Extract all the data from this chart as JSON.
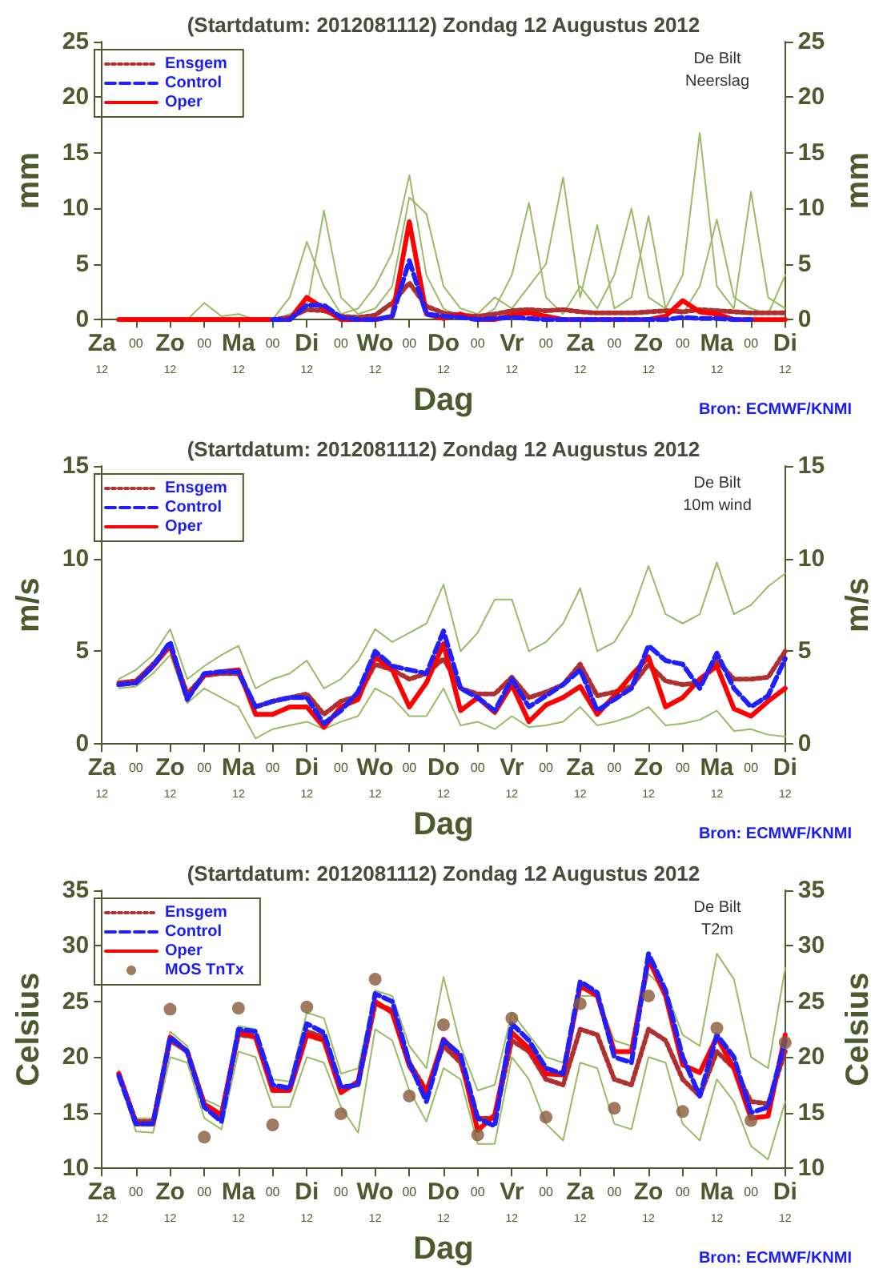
{
  "chart_data": [
    {
      "type": "line",
      "title": "(Startdatum: 2012081112) Zondag 12 Augustus 2012",
      "xlabel": "Dag",
      "ylabel": "mm",
      "y2label": "mm",
      "annotations": [
        "De Bilt",
        "Neerslag",
        "Bron: ECMWF/KNMI"
      ],
      "legend": "top left",
      "marker": "none",
      "categories": [
        "Za\n12",
        null,
        "00",
        null,
        "Zo\n12",
        null,
        "00",
        null,
        "Ma\n12",
        null,
        "00",
        null,
        "Di\n12",
        null,
        "00",
        null,
        "Wo\n12",
        null,
        "00",
        null,
        "Do\n12",
        null,
        "00",
        null,
        "Vr\n12",
        null,
        "00",
        null,
        "Za\n12",
        null,
        "00",
        null,
        "Zo\n12",
        null,
        "00",
        null,
        "Ma\n12",
        null,
        "00",
        null,
        "Di\n12"
      ],
      "ylim": [
        0,
        25
      ],
      "yticks": [
        0,
        5,
        10,
        15,
        20,
        25
      ],
      "y2lim": [
        0,
        25
      ],
      "y2ticks": [
        0,
        5,
        10,
        15,
        20,
        25
      ],
      "series": [
        {
          "color": "#99bb66",
          "line_style": "solid",
          "values": [
            null,
            null,
            null,
            null,
            0,
            0,
            0,
            0,
            0,
            0,
            0,
            2,
            7,
            3,
            0.5,
            1,
            3,
            6,
            13,
            4,
            1,
            0.2,
            0,
            1,
            4,
            10.5,
            2,
            0.5,
            3,
            1,
            4,
            10,
            2,
            1,
            4,
            16.8,
            3,
            1,
            11.5,
            2,
            1
          ]
        },
        {
          "color": "#99bb66",
          "line_style": "solid",
          "values": [
            null,
            null,
            null,
            null,
            0,
            0,
            1.5,
            0.3,
            0.5,
            0,
            0,
            0.5,
            1,
            9.8,
            2,
            0.5,
            1,
            3,
            11,
            9.5,
            3,
            1,
            0.5,
            2,
            1,
            3,
            5,
            12.8,
            2,
            8.5,
            1,
            2,
            9.3,
            1,
            0.5,
            3,
            9,
            2,
            1,
            0.5,
            4
          ]
        },
        {
          "name": "Ensgem",
          "color": "#b03030",
          "line_style": "dotted",
          "values": [
            null,
            0,
            0,
            0,
            0,
            0,
            0,
            0,
            0,
            0,
            0,
            0.2,
            0.9,
            0.8,
            0.3,
            0.2,
            0.4,
            1.5,
            3.3,
            1.2,
            0.6,
            0.4,
            0.3,
            0.5,
            0.8,
            0.9,
            0.8,
            0.9,
            0.7,
            0.6,
            0.6,
            0.6,
            0.7,
            0.8,
            0.7,
            0.9,
            0.8,
            0.7,
            0.6,
            0.6,
            0.6
          ]
        },
        {
          "name": "Control",
          "color": "#2020ff",
          "line_style": "dashed",
          "values": [
            null,
            null,
            null,
            null,
            null,
            null,
            null,
            null,
            null,
            null,
            0,
            0,
            1.3,
            1.3,
            0.2,
            0,
            0,
            0.3,
            5.3,
            0.5,
            0.3,
            0.2,
            0,
            0.1,
            0.2,
            0.1,
            0,
            0,
            0,
            0,
            0,
            0,
            0,
            0,
            0.2,
            0.1,
            0.1,
            0,
            0,
            null,
            null
          ]
        },
        {
          "name": "Oper",
          "color": "#ff0000",
          "line_style": "solid",
          "values": [
            null,
            0,
            0,
            0,
            0,
            0,
            0,
            0,
            0,
            0,
            0,
            0,
            2.0,
            1.0,
            0,
            0,
            0,
            0.3,
            8.8,
            0.5,
            0.1,
            0.5,
            0,
            0,
            0.4,
            0.6,
            0.3,
            0,
            0,
            0,
            0,
            0,
            0,
            0.3,
            1.7,
            0.7,
            0.5,
            0,
            0,
            0,
            0
          ]
        }
      ]
    },
    {
      "type": "line",
      "title": "(Startdatum: 2012081112) Zondag 12 Augustus 2012",
      "xlabel": "Dag",
      "ylabel": "m/s",
      "y2label": "m/s",
      "annotations": [
        "De Bilt",
        "10m wind",
        "Bron: ECMWF/KNMI"
      ],
      "legend": "top left",
      "marker": "none",
      "categories": [
        "Za\n12",
        null,
        "00",
        null,
        "Zo\n12",
        null,
        "00",
        null,
        "Ma\n12",
        null,
        "00",
        null,
        "Di\n12",
        null,
        "00",
        null,
        "Wo\n12",
        null,
        "00",
        null,
        "Do\n12",
        null,
        "00",
        null,
        "Vr\n12",
        null,
        "00",
        null,
        "Za\n12",
        null,
        "00",
        null,
        "Zo\n12",
        null,
        "00",
        null,
        "Ma\n12",
        null,
        "00",
        null,
        "Di\n12"
      ],
      "ylim": [
        0,
        15
      ],
      "yticks": [
        0,
        5,
        10,
        15
      ],
      "y2lim": [
        0,
        15
      ],
      "y2ticks": [
        0,
        5,
        10,
        15
      ],
      "series": [
        {
          "color": "#99bb66",
          "line_style": "solid",
          "values": [
            null,
            3.5,
            4,
            4.8,
            6.2,
            3.5,
            4.2,
            4.8,
            5.3,
            3,
            3.5,
            3.8,
            4.5,
            3,
            3.5,
            4.5,
            6.2,
            5.5,
            6,
            6.5,
            8.6,
            5,
            6,
            7.8,
            7.8,
            5,
            5.5,
            6.5,
            8.4,
            5,
            5.5,
            7,
            9.6,
            7,
            6.5,
            7,
            9.8,
            7,
            7.5,
            8.5,
            9.2
          ]
        },
        {
          "color": "#99bb66",
          "line_style": "solid",
          "values": [
            null,
            3,
            3.1,
            3.8,
            4.8,
            2.2,
            3,
            2.5,
            2,
            0.3,
            0.8,
            1,
            1.2,
            0.8,
            1.2,
            1.5,
            3,
            2.5,
            1.5,
            1.5,
            3,
            1,
            1.2,
            0.8,
            1.5,
            0.9,
            1,
            1.2,
            2,
            1,
            1.2,
            1.5,
            2,
            1,
            1.1,
            1.3,
            1.8,
            0.7,
            0.8,
            0.5,
            0.4
          ]
        },
        {
          "name": "Ensgem",
          "color": "#b03030",
          "line_style": "dotted",
          "values": [
            null,
            3.3,
            3.4,
            4.3,
            5.3,
            2.7,
            3.7,
            3.8,
            3.8,
            2.0,
            2.3,
            2.5,
            2.7,
            1.6,
            2.3,
            2.6,
            4.3,
            4.0,
            3.5,
            3.8,
            4.6,
            3.0,
            2.7,
            2.7,
            3.6,
            2.5,
            2.8,
            3.2,
            4.3,
            2.6,
            2.8,
            3.1,
            4.3,
            3.4,
            3.2,
            3.3,
            4.5,
            3.5,
            3.5,
            3.6,
            5.0
          ]
        },
        {
          "name": "Control",
          "color": "#2020ff",
          "line_style": "dashed",
          "values": [
            null,
            3.2,
            3.3,
            4.2,
            5.5,
            2.4,
            3.8,
            3.9,
            3.9,
            2.0,
            2.3,
            2.5,
            2.5,
            1.1,
            1.8,
            2.8,
            5.0,
            4.2,
            4.0,
            3.8,
            6.1,
            3.0,
            2.5,
            1.8,
            3.5,
            2.0,
            2.6,
            3.2,
            4.0,
            1.8,
            2.4,
            3.0,
            5.3,
            4.5,
            4.3,
            3.0,
            4.9,
            3.0,
            2.0,
            2.6,
            4.6
          ]
        },
        {
          "name": "Oper",
          "color": "#ff0000",
          "line_style": "solid",
          "values": [
            null,
            3.2,
            3.3,
            4.2,
            5.3,
            2.5,
            3.7,
            3.9,
            4.0,
            1.6,
            1.6,
            2.0,
            2.0,
            0.9,
            2.0,
            2.4,
            4.7,
            4.0,
            2.0,
            3.3,
            5.4,
            1.8,
            2.5,
            1.7,
            3.2,
            1.2,
            2.1,
            2.5,
            3.1,
            1.6,
            2.6,
            3.7,
            4.7,
            2.0,
            2.5,
            3.5,
            4.2,
            1.9,
            1.5,
            2.3,
            3.0
          ]
        }
      ]
    },
    {
      "type": "line",
      "title": "(Startdatum: 2012081112) Zondag 12 Augustus 2012",
      "xlabel": "Dag",
      "ylabel": "Celsius",
      "y2label": "Celsius",
      "annotations": [
        "De Bilt",
        "T2m",
        "Bron: ECMWF/KNMI"
      ],
      "legend": "top left",
      "marker": "none",
      "categories": [
        "Za\n12",
        null,
        "00",
        null,
        "Zo\n12",
        null,
        "00",
        null,
        "Ma\n12",
        null,
        "00",
        null,
        "Di\n12",
        null,
        "00",
        null,
        "Wo\n12",
        null,
        "00",
        null,
        "Do\n12",
        null,
        "00",
        null,
        "Vr\n12",
        null,
        "00",
        null,
        "Za\n12",
        null,
        "00",
        null,
        "Zo\n12",
        null,
        "00",
        null,
        "Ma\n12",
        null,
        "00",
        null,
        "Di\n12"
      ],
      "ylim": [
        10,
        35
      ],
      "yticks": [
        10,
        15,
        20,
        25,
        30,
        35
      ],
      "y2lim": [
        10,
        35
      ],
      "y2ticks": [
        10,
        15,
        20,
        25,
        30,
        35
      ],
      "series": [
        {
          "color": "#99bb66",
          "line_style": "solid",
          "values": [
            null,
            18.8,
            14.5,
            14.5,
            22.3,
            21,
            16.2,
            15.5,
            22.8,
            22.5,
            18,
            17.8,
            24,
            23.5,
            18.5,
            19,
            26,
            25.5,
            21,
            19,
            27.2,
            21,
            17,
            17.5,
            24,
            22,
            20,
            19.5,
            25.5,
            25.5,
            21.5,
            21,
            27.5,
            26,
            22,
            21,
            29.3,
            27,
            20,
            19,
            28
          ]
        },
        {
          "color": "#99bb66",
          "line_style": "solid",
          "values": [
            null,
            18.2,
            13.3,
            13.2,
            20,
            19.5,
            14.5,
            13.5,
            20.5,
            20,
            15.5,
            15.5,
            20,
            19.5,
            15.5,
            13.2,
            22.5,
            21.5,
            17,
            14.2,
            19,
            18,
            12.2,
            12.2,
            20,
            18,
            14,
            12.5,
            19.5,
            19,
            14,
            13.5,
            20,
            19.5,
            14,
            12.5,
            18,
            16,
            12,
            10.8,
            16
          ]
        },
        {
          "name": "Ensgem",
          "color": "#b03030",
          "line_style": "dotted",
          "values": [
            null,
            18.5,
            14.2,
            14.2,
            21.5,
            20.5,
            15.8,
            14.8,
            22,
            21.8,
            17.2,
            17.2,
            22.3,
            21.8,
            17.2,
            17.5,
            24.8,
            24.2,
            19.5,
            17,
            21,
            19.5,
            14.5,
            14.5,
            21.5,
            20.5,
            18,
            17.5,
            22.5,
            22,
            18,
            17.5,
            22.5,
            21.5,
            18,
            16.5,
            20.5,
            19,
            16,
            15.8,
            20.5
          ]
        },
        {
          "name": "Control",
          "color": "#2020ff",
          "line_style": "dashed",
          "values": [
            null,
            18.3,
            14.0,
            14.0,
            21.8,
            20.5,
            15.5,
            14.2,
            22.5,
            22.3,
            17.5,
            17.2,
            23.0,
            22.2,
            17.3,
            17.5,
            25.7,
            25.0,
            19.5,
            16.0,
            21.5,
            20.2,
            14.5,
            13.8,
            23.0,
            21.5,
            19.0,
            18.5,
            26.8,
            25.8,
            20.0,
            19.5,
            29.3,
            26.0,
            20.0,
            16.5,
            22.0,
            20.0,
            15.0,
            15.5,
            21.5
          ]
        },
        {
          "name": "Oper",
          "color": "#ff0000",
          "line_style": "solid",
          "values": [
            null,
            18.5,
            14.0,
            14.0,
            21.8,
            20.5,
            15.7,
            14.8,
            22.3,
            21.8,
            17.0,
            17.0,
            22.0,
            21.5,
            16.8,
            17.8,
            25.0,
            24.0,
            19.2,
            16.8,
            21.6,
            20.0,
            13.4,
            14.8,
            22.2,
            20.8,
            18.5,
            18.4,
            26.4,
            25.5,
            20.5,
            20.5,
            28.8,
            25.5,
            19.3,
            18.6,
            21.8,
            19.0,
            14.5,
            14.7,
            22.0
          ]
        },
        {
          "name": "MOS TnTx",
          "type": "scatter",
          "marker": "circle",
          "color": "#8a5a3a",
          "values": [
            null,
            null,
            null,
            null,
            24.3,
            null,
            12.8,
            null,
            24.4,
            null,
            13.9,
            null,
            24.5,
            null,
            14.9,
            null,
            27.0,
            null,
            16.5,
            null,
            22.9,
            null,
            13.0,
            null,
            23.5,
            null,
            14.6,
            null,
            24.8,
            null,
            15.4,
            null,
            25.5,
            null,
            15.1,
            null,
            22.6,
            null,
            14.3,
            null,
            21.3
          ]
        }
      ]
    }
  ]
}
